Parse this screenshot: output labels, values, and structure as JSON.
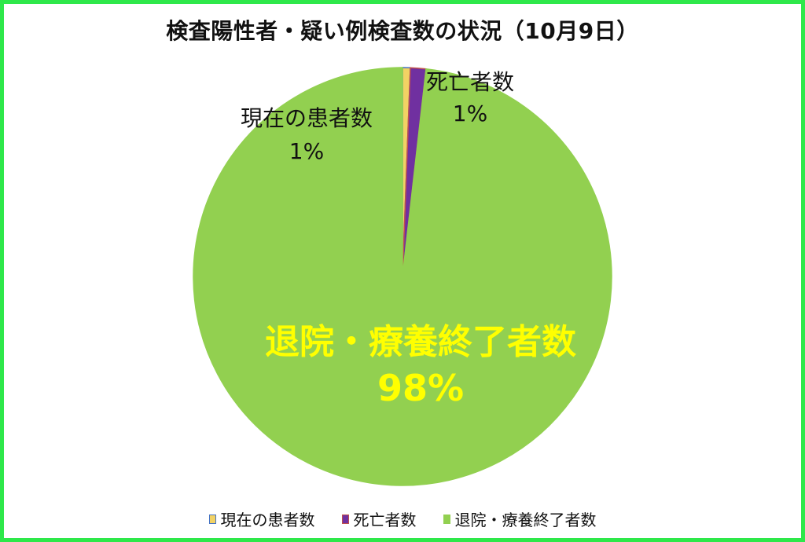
{
  "chart_data": {
    "type": "pie",
    "title": "検査陽性者・疑い例検査数の状況（10月9日）",
    "categories": [
      "現在の患者数",
      "死亡者数",
      "退院・療養終了者数"
    ],
    "values": [
      0.6,
      1.2,
      98.2
    ],
    "data_labels": [
      "1%",
      "1%",
      "98%"
    ],
    "colors": [
      "#f2d264",
      "#7030a0",
      "#92d050"
    ],
    "swatch_borders": [
      "#4472c4",
      "#c0504d",
      "#92d050"
    ],
    "legend_position": "bottom",
    "label_colors": [
      "#111111",
      "#111111",
      "#ffff00"
    ]
  }
}
